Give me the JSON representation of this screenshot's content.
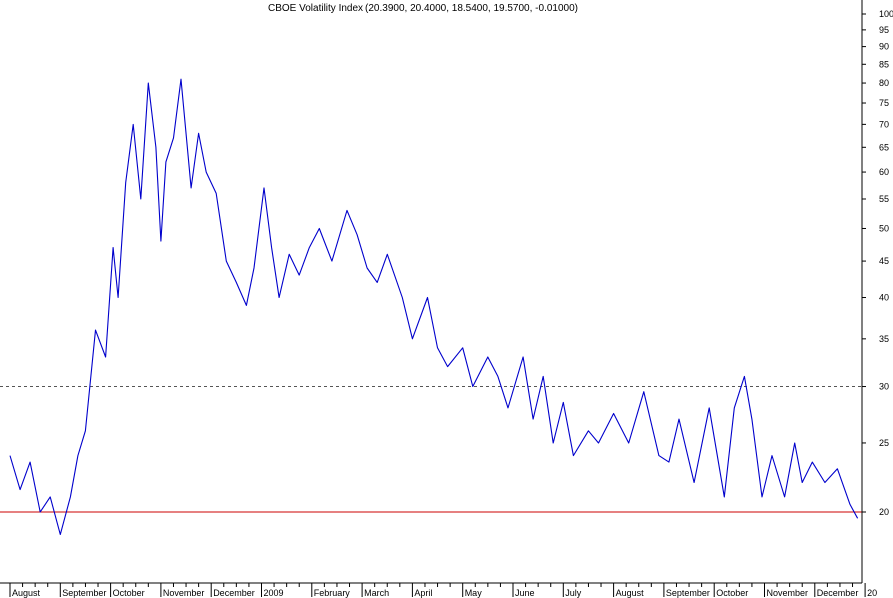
{
  "chart_data": {
    "type": "line",
    "title": "CBOE Volatility Index (20.3900, 20.4000, 18.5400, 19.5700, -0.01000)",
    "title_parts": {
      "name": "CBOE Volatility Index",
      "values": "(20.3900, 20.4000, 18.5400, 19.5700, -0.01000)"
    },
    "y_scale": "log",
    "ylim": [
      17,
      105
    ],
    "y_ticks": [
      100,
      95,
      90,
      85,
      80,
      75,
      70,
      65,
      60,
      55,
      50,
      45,
      40,
      35,
      30,
      25,
      20
    ],
    "x_labels": [
      "August",
      "September",
      "October",
      "November",
      "December",
      "2009",
      "February",
      "March",
      "April",
      "May",
      "June",
      "July",
      "August",
      "September",
      "October",
      "November",
      "December",
      "20"
    ],
    "x_label_periods": [
      0,
      1,
      2,
      3,
      4,
      5,
      6,
      7,
      8,
      9,
      10,
      11,
      12,
      13,
      14,
      15,
      16,
      17
    ],
    "reference_lines": [
      {
        "value": 30,
        "style": "dashed",
        "color": "#555555"
      },
      {
        "value": 20,
        "style": "solid",
        "color": "#cc0000"
      }
    ],
    "series": [
      {
        "color": "#0000cc",
        "x": [
          0.0,
          0.2,
          0.4,
          0.6,
          0.8,
          1.0,
          1.2,
          1.35,
          1.5,
          1.7,
          1.9,
          2.05,
          2.15,
          2.3,
          2.45,
          2.6,
          2.75,
          2.9,
          3.0,
          3.1,
          3.25,
          3.4,
          3.6,
          3.75,
          3.9,
          4.1,
          4.3,
          4.5,
          4.7,
          4.85,
          5.05,
          5.2,
          5.35,
          5.55,
          5.75,
          5.95,
          6.15,
          6.4,
          6.7,
          6.9,
          7.1,
          7.3,
          7.5,
          7.8,
          8.0,
          8.3,
          8.5,
          8.7,
          9.0,
          9.2,
          9.5,
          9.7,
          9.9,
          10.2,
          10.4,
          10.6,
          10.8,
          11.0,
          11.2,
          11.5,
          11.7,
          12.0,
          12.3,
          12.6,
          12.9,
          13.1,
          13.3,
          13.6,
          13.9,
          14.2,
          14.4,
          14.6,
          14.75,
          14.95,
          15.15,
          15.4,
          15.6,
          15.75,
          15.95,
          16.2,
          16.45,
          16.7,
          16.85
        ],
        "y": [
          24,
          21.5,
          23.5,
          20,
          21,
          18.6,
          21,
          24,
          26,
          36,
          33,
          47,
          40,
          58,
          70,
          55,
          80,
          65,
          48,
          62,
          67,
          81,
          57,
          68,
          60,
          56,
          45,
          42,
          39,
          44,
          57,
          47,
          40,
          46,
          43,
          47,
          50,
          45,
          53,
          49,
          44,
          42,
          46,
          40,
          35,
          40,
          34,
          32,
          34,
          30,
          33,
          31,
          28,
          33,
          27,
          31,
          25,
          28.5,
          24,
          26,
          25,
          27.5,
          25,
          29.5,
          24,
          23.5,
          27,
          22,
          28,
          21,
          28,
          31,
          27,
          21,
          24,
          21,
          25,
          22,
          23.5,
          22,
          23,
          20.5,
          19.6
        ]
      }
    ]
  }
}
